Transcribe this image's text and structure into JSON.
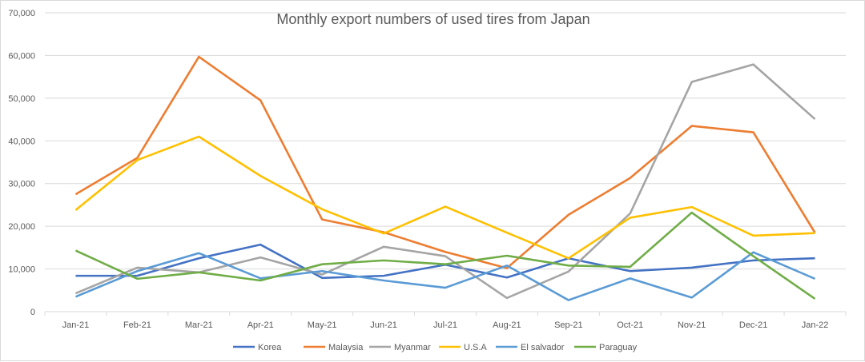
{
  "chart_data": {
    "type": "line",
    "title": "Monthly export numbers of used tires from Japan",
    "categories": [
      "Jan-21",
      "Feb-21",
      "Mar-21",
      "Apr-21",
      "May-21",
      "Jun-21",
      "Jul-21",
      "Aug-21",
      "Sep-21",
      "Oct-21",
      "Nov-21",
      "Dec-21",
      "Jan-22"
    ],
    "ylim": [
      0,
      70000
    ],
    "yticks": [
      0,
      10000,
      20000,
      30000,
      40000,
      50000,
      60000,
      70000
    ],
    "ytick_labels": [
      "0",
      "10,000",
      "20,000",
      "30,000",
      "40,000",
      "50,000",
      "60,000",
      "70,000"
    ],
    "grid": true,
    "legend": "bottom",
    "series": [
      {
        "name": "Korea",
        "color": "#4472C4",
        "values": [
          8400,
          8400,
          12500,
          15700,
          7900,
          8400,
          11000,
          8000,
          12500,
          9500,
          10300,
          12000,
          12500
        ]
      },
      {
        "name": "Malaysia",
        "color": "#ED7D31",
        "values": [
          27500,
          36000,
          59700,
          49500,
          21600,
          18600,
          14000,
          10200,
          22700,
          31300,
          43500,
          42000,
          18500
        ]
      },
      {
        "name": "Myanmar",
        "color": "#A5A5A5",
        "values": [
          4300,
          10300,
          9200,
          12700,
          8700,
          15200,
          13000,
          3200,
          9400,
          23000,
          53800,
          57900,
          45100
        ]
      },
      {
        "name": "U.S.A",
        "color": "#FFC000",
        "values": [
          23800,
          35500,
          41000,
          31800,
          24000,
          18300,
          24600,
          18500,
          12500,
          22000,
          24500,
          17800,
          18400
        ]
      },
      {
        "name": "El salvador",
        "color": "#5B9BD5",
        "values": [
          3500,
          9500,
          13700,
          7800,
          9500,
          7300,
          5600,
          10800,
          2700,
          7800,
          3300,
          13900,
          7700
        ]
      },
      {
        "name": "Paraguay",
        "color": "#70AD47",
        "values": [
          14300,
          7700,
          9200,
          7300,
          11100,
          12000,
          11100,
          13100,
          10800,
          10500,
          23200,
          13000,
          3000
        ]
      }
    ]
  }
}
